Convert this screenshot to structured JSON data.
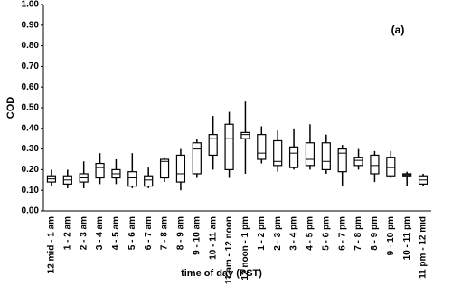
{
  "chart_data": {
    "type": "box",
    "annotation": "(a)",
    "xlabel": "time of day (PST)",
    "ylabel": "COD",
    "categories": [
      "12 mid - 1 am",
      "1 - 2 am",
      "2 - 3 am",
      "3 - 4 am",
      "4 - 5 am",
      "5 - 6 am",
      "6 - 7 am",
      "7 - 8 am",
      "8 - 9 am",
      "9 - 10 am",
      "10 - 11 am",
      "11 am - 12 noon",
      "12 noon - 1 pm",
      "1 - 2 pm",
      "2 - 3 pm",
      "3 - 4 pm",
      "4 - 5 pm",
      "5 - 6 pm",
      "6 - 7 pm",
      "7 - 8 pm",
      "8 - 9 pm",
      "9 - 10 pm",
      "10 - 11 pm",
      "11 pm - 12 mid"
    ],
    "low": [
      0.12,
      0.11,
      0.11,
      0.13,
      0.13,
      0.11,
      0.11,
      0.14,
      0.1,
      0.16,
      0.2,
      0.16,
      0.18,
      0.23,
      0.19,
      0.2,
      0.2,
      0.18,
      0.12,
      0.2,
      0.14,
      0.16,
      0.12,
      0.12
    ],
    "q1": [
      0.14,
      0.13,
      0.14,
      0.16,
      0.16,
      0.12,
      0.12,
      0.16,
      0.14,
      0.18,
      0.27,
      0.2,
      0.35,
      0.25,
      0.22,
      0.21,
      0.22,
      0.2,
      0.19,
      0.22,
      0.18,
      0.17,
      0.17,
      0.13
    ],
    "median": [
      0.155,
      0.15,
      0.16,
      0.21,
      0.18,
      0.16,
      0.15,
      0.24,
      0.18,
      0.3,
      0.35,
      0.35,
      0.37,
      0.28,
      0.24,
      0.28,
      0.25,
      0.24,
      0.28,
      0.245,
      0.22,
      0.21,
      0.175,
      0.15
    ],
    "q3": [
      0.17,
      0.17,
      0.18,
      0.23,
      0.2,
      0.19,
      0.17,
      0.25,
      0.27,
      0.33,
      0.37,
      0.42,
      0.38,
      0.37,
      0.34,
      0.31,
      0.33,
      0.33,
      0.3,
      0.26,
      0.27,
      0.26,
      0.18,
      0.17
    ],
    "high": [
      0.2,
      0.2,
      0.24,
      0.28,
      0.25,
      0.28,
      0.21,
      0.26,
      0.3,
      0.35,
      0.46,
      0.48,
      0.53,
      0.41,
      0.39,
      0.4,
      0.42,
      0.37,
      0.32,
      0.3,
      0.29,
      0.29,
      0.19,
      0.18
    ],
    "color": "#000000",
    "ylim": [
      0,
      1
    ],
    "yticks": [
      {
        "value": 0,
        "label": "0.00"
      },
      {
        "value": 0.1,
        "label": "0.10"
      },
      {
        "value": 0.2,
        "label": "0.20"
      },
      {
        "value": 0.3,
        "label": "0.30"
      },
      {
        "value": 0.4,
        "label": "0.40"
      },
      {
        "value": 0.5,
        "label": "0.50"
      },
      {
        "value": 0.6,
        "label": "0.60"
      },
      {
        "value": 0.7,
        "label": "0.70"
      },
      {
        "value": 0.8,
        "label": "0.80"
      },
      {
        "value": 0.9,
        "label": "0.90"
      },
      {
        "value": 1,
        "label": "1.00"
      }
    ],
    "grid": false
  }
}
